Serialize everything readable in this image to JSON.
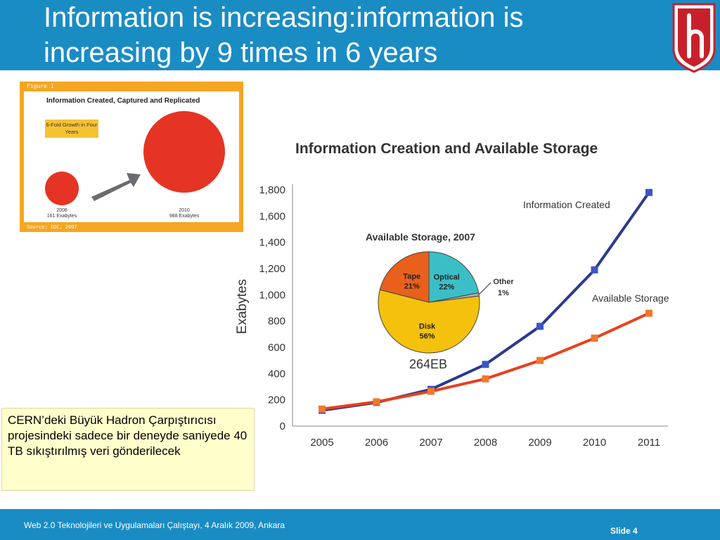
{
  "slide": {
    "title_line1": "Information is increasing:information is",
    "title_line2": "increasing by 9 times in 6 years",
    "note": "CERN’deki Büyük Hadron Çarpıştırıcısı projesindeki sadece bir deneyde saniyede 40 TB sıkıştırılmış veri gönderilecek",
    "footer": "Web 2.0 Teknolojileri ve Uygulamaları Çalıştayı, 4 Aralık 2009, Ankara",
    "slide_number": "Slide 4",
    "colors": {
      "header": "#1a8cc4",
      "accent_orange": "#f5a623",
      "logo_red": "#c8202b"
    }
  },
  "chart_data": [
    {
      "type": "bubble",
      "figure_label": "Figure 1",
      "title": "Information Created, Captured and Replicated",
      "annotation": "6-Fold Growth in Four Years",
      "source": "Source: IDC, 2007",
      "points": [
        {
          "year": "2006",
          "value": 161,
          "label": "161 Exabytes"
        },
        {
          "year": "2010",
          "value": 988,
          "label": "988 Exabytes"
        }
      ]
    },
    {
      "type": "line",
      "title": "Information Creation and Available Storage",
      "ylabel": "Exabytes",
      "categories": [
        "2005",
        "2006",
        "2007",
        "2008",
        "2009",
        "2010",
        "2011"
      ],
      "ylim": [
        0,
        1800
      ],
      "yticks": [
        "0",
        "200",
        "400",
        "600",
        "800",
        "1,000",
        "1,200",
        "1,400",
        "1,600",
        "1,800"
      ],
      "series": [
        {
          "name": "Information Created",
          "color": "#2b3a8c",
          "values": [
            120,
            180,
            280,
            470,
            760,
            1190,
            1780
          ]
        },
        {
          "name": "Available Storage",
          "color": "#e8401c",
          "values": [
            130,
            185,
            265,
            360,
            500,
            670,
            860
          ]
        }
      ]
    },
    {
      "type": "pie",
      "title": "Available Storage, 2007",
      "total_label": "264EB",
      "slices": [
        {
          "name": "Tape",
          "label": "21%",
          "value": 21,
          "color": "#e8601c"
        },
        {
          "name": "Optical",
          "label": "22%",
          "value": 22,
          "color": "#3bbfc6"
        },
        {
          "name": "Other",
          "label": "1%",
          "value": 1,
          "color": "#b0b0b0"
        },
        {
          "name": "Disk",
          "label": "56%",
          "value": 56,
          "color": "#f4c20d"
        }
      ]
    }
  ]
}
